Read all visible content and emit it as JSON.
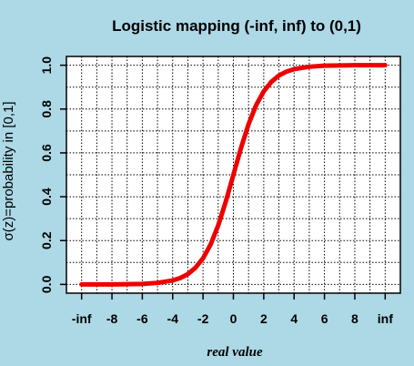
{
  "chart_data": {
    "type": "line",
    "title": "Logistic mapping (-inf, inf) to (0,1)",
    "xlabel": "real value",
    "ylabel": "σ(z)=probability in [0,1]",
    "xlim": [
      -11,
      11
    ],
    "ylim": [
      0,
      1
    ],
    "x_ticks": [
      {
        "value": -10,
        "label": "-inf"
      },
      {
        "value": -8,
        "label": "-8"
      },
      {
        "value": -6,
        "label": "-6"
      },
      {
        "value": -4,
        "label": "-4"
      },
      {
        "value": -2,
        "label": "-2"
      },
      {
        "value": 0,
        "label": "0"
      },
      {
        "value": 2,
        "label": "2"
      },
      {
        "value": 4,
        "label": "4"
      },
      {
        "value": 6,
        "label": "6"
      },
      {
        "value": 8,
        "label": "8"
      },
      {
        "value": 10,
        "label": "inf"
      }
    ],
    "y_ticks": [
      {
        "value": 0.0,
        "label": "0.0"
      },
      {
        "value": 0.2,
        "label": "0.2"
      },
      {
        "value": 0.4,
        "label": "0.4"
      },
      {
        "value": 0.6,
        "label": "0.6"
      },
      {
        "value": 0.8,
        "label": "0.8"
      },
      {
        "value": 1.0,
        "label": "1.0"
      }
    ],
    "grid": true,
    "series": [
      {
        "color": "#ee0000",
        "x": [
          -11,
          -10,
          -9,
          -8,
          -7,
          -6,
          -5,
          -4,
          -3.5,
          -3,
          -2.5,
          -2,
          -1.5,
          -1,
          -0.5,
          0,
          0.5,
          1,
          1.5,
          2,
          2.5,
          3,
          3.5,
          4,
          5,
          6,
          7,
          8,
          9,
          10,
          11
        ],
        "y": [
          0.0,
          0.0,
          0.0,
          0.0,
          0.001,
          0.002,
          0.007,
          0.018,
          0.029,
          0.047,
          0.076,
          0.119,
          0.182,
          0.269,
          0.378,
          0.5,
          0.622,
          0.731,
          0.818,
          0.881,
          0.924,
          0.953,
          0.971,
          0.982,
          0.993,
          0.998,
          0.999,
          1.0,
          1.0,
          1.0,
          1.0
        ]
      }
    ]
  },
  "colors": {
    "background": "#add8e6",
    "plot_background": "#ffffff",
    "grid": "#000000",
    "curve": "#ee0000"
  }
}
